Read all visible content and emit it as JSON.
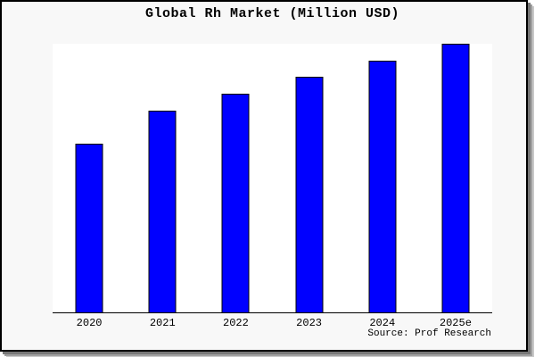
{
  "frame": {
    "background": "#f8f8f8",
    "border_color": "#000000",
    "shadow_colors": [
      "#787878",
      "#a0a0a0",
      "#c9c9c9"
    ]
  },
  "footer": {
    "source": "Source: Prof Research"
  },
  "chart_data": {
    "type": "bar",
    "title": "Global Rh Market (Million USD)",
    "categories": [
      "2020",
      "2021",
      "2022",
      "2023",
      "2024",
      "2025e"
    ],
    "values": [
      62.8,
      75.1,
      81.4,
      87.7,
      93.7,
      100
    ],
    "values_note": "no y-axis or value labels shown; values are bar heights as percent of the tallest bar (2025e)",
    "xlabel": "",
    "ylabel": "",
    "ylim": [
      0,
      100
    ],
    "grid": false,
    "legend": false,
    "bar_color": "#0000ff",
    "bar_edge_color": "#000000",
    "plot_background": "#ffffff",
    "axis_shown": "bottom spine only"
  }
}
